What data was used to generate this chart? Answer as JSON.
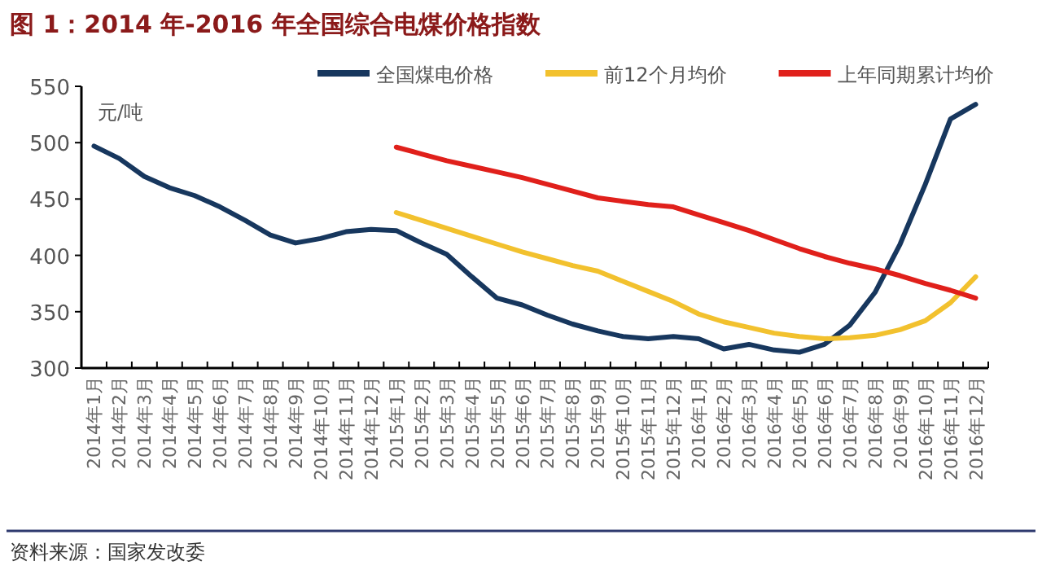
{
  "chart_data": {
    "type": "line",
    "title": "图 1：2014 年-2016 年全国综合电煤价格指数",
    "ylabel": "元/吨",
    "categories": [
      "2014年1月",
      "2014年2月",
      "2014年3月",
      "2014年4月",
      "2014年5月",
      "2014年6月",
      "2014年7月",
      "2014年8月",
      "2014年9月",
      "2014年10月",
      "2014年11月",
      "2014年12月",
      "2015年1月",
      "2015年2月",
      "2015年3月",
      "2015年4月",
      "2015年5月",
      "2015年6月",
      "2015年7月",
      "2015年8月",
      "2015年9月",
      "2015年10月",
      "2015年11月",
      "2015年12月",
      "2016年1月",
      "2016年2月",
      "2016年3月",
      "2016年4月",
      "2016年5月",
      "2016年6月",
      "2016年7月",
      "2016年8月",
      "2016年9月",
      "2016年10月",
      "2016年11月",
      "2016年12月"
    ],
    "series": [
      {
        "name": "全国煤电价格",
        "color": "#17375e",
        "values": [
          497,
          486,
          470,
          460,
          453,
          443,
          431,
          418,
          411,
          415,
          421,
          423,
          422,
          411,
          401,
          381,
          362,
          356,
          347,
          339,
          333,
          328,
          326,
          328,
          326,
          317,
          321,
          316,
          314,
          321,
          338,
          367,
          410,
          463,
          521,
          534
        ]
      },
      {
        "name": "前12个月均价",
        "color": "#f2c12e",
        "values": [
          null,
          null,
          null,
          null,
          null,
          null,
          null,
          null,
          null,
          null,
          null,
          null,
          438,
          431,
          424,
          417,
          410,
          403,
          397,
          391,
          386,
          377,
          368,
          359,
          348,
          341,
          336,
          331,
          328,
          326,
          327,
          329,
          334,
          342,
          358,
          381
        ]
      },
      {
        "name": "上年同期累计均价",
        "color": "#e0201b",
        "values": [
          null,
          null,
          null,
          null,
          null,
          null,
          null,
          null,
          null,
          null,
          null,
          null,
          496,
          490,
          484,
          479,
          474,
          469,
          463,
          457,
          451,
          448,
          445,
          443,
          436,
          429,
          422,
          414,
          406,
          399,
          393,
          388,
          382,
          375,
          369,
          362
        ]
      }
    ],
    "ylim": [
      300,
      550
    ],
    "yticks": [
      300,
      350,
      400,
      450,
      500,
      550
    ],
    "legend": "top",
    "marker": "none",
    "line_style": "solid",
    "annotations": [
      "资料来源：国家发改委"
    ]
  }
}
